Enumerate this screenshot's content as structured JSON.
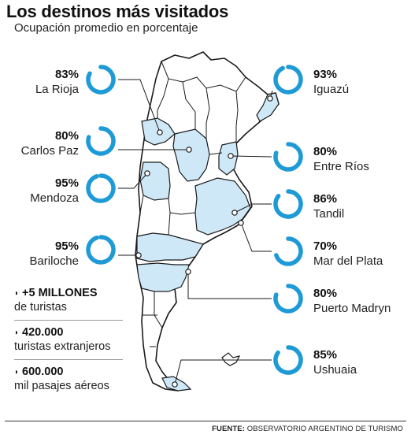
{
  "title": "Los destinos más visitados",
  "subtitle": "Ocupación promedio en porcentaje",
  "colors": {
    "ring": "#1e9ad6",
    "highlight": "#cfe8f7",
    "outline": "#1a1a1a"
  },
  "chart_data": {
    "type": "donut",
    "unit": "%",
    "destinations": [
      {
        "name": "La Rioja",
        "pct_label": "83%",
        "value": 83
      },
      {
        "name": "Carlos Paz",
        "pct_label": "80%",
        "value": 80
      },
      {
        "name": "Mendoza",
        "pct_label": "95%",
        "value": 95
      },
      {
        "name": "Bariloche",
        "pct_label": "95%",
        "value": 95
      },
      {
        "name": "Iguazú",
        "pct_label": "93%",
        "value": 93
      },
      {
        "name": "Entre Ríos",
        "pct_label": "80%",
        "value": 80
      },
      {
        "name": "Tandil",
        "pct_label": "86%",
        "value": 86
      },
      {
        "name": "Mar del Plata",
        "pct_label": "70%",
        "value": 70
      },
      {
        "name": "Puerto Madryn",
        "pct_label": "80%",
        "value": 80
      },
      {
        "name": "Ushuaia",
        "pct_label": "85%",
        "value": 85
      }
    ]
  },
  "stats": [
    {
      "value": "+5 MILLONES",
      "desc": "de turistas"
    },
    {
      "value": "420.000",
      "desc": "turistas extranjeros"
    },
    {
      "value": "600.000",
      "desc": "mil pasajes aéreos"
    }
  ],
  "source": {
    "label": "FUENTE:",
    "text": "OBSERVATORIO ARGENTINO DE TURISMO"
  }
}
